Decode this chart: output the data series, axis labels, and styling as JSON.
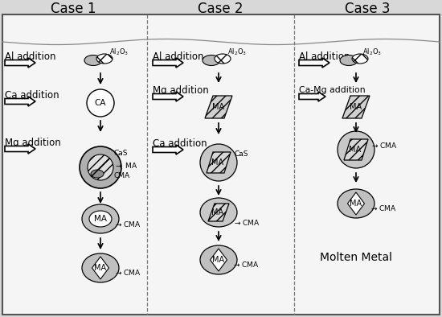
{
  "title_case1": "Case 1",
  "title_case2": "Case 2",
  "title_case3": "Case 3",
  "bg_color": "#d8d8d8",
  "box_facecolor": "#f5f5f5",
  "molten_metal": "Molten Metal",
  "fig_w": 5.5,
  "fig_h": 3.94,
  "dpi": 100
}
